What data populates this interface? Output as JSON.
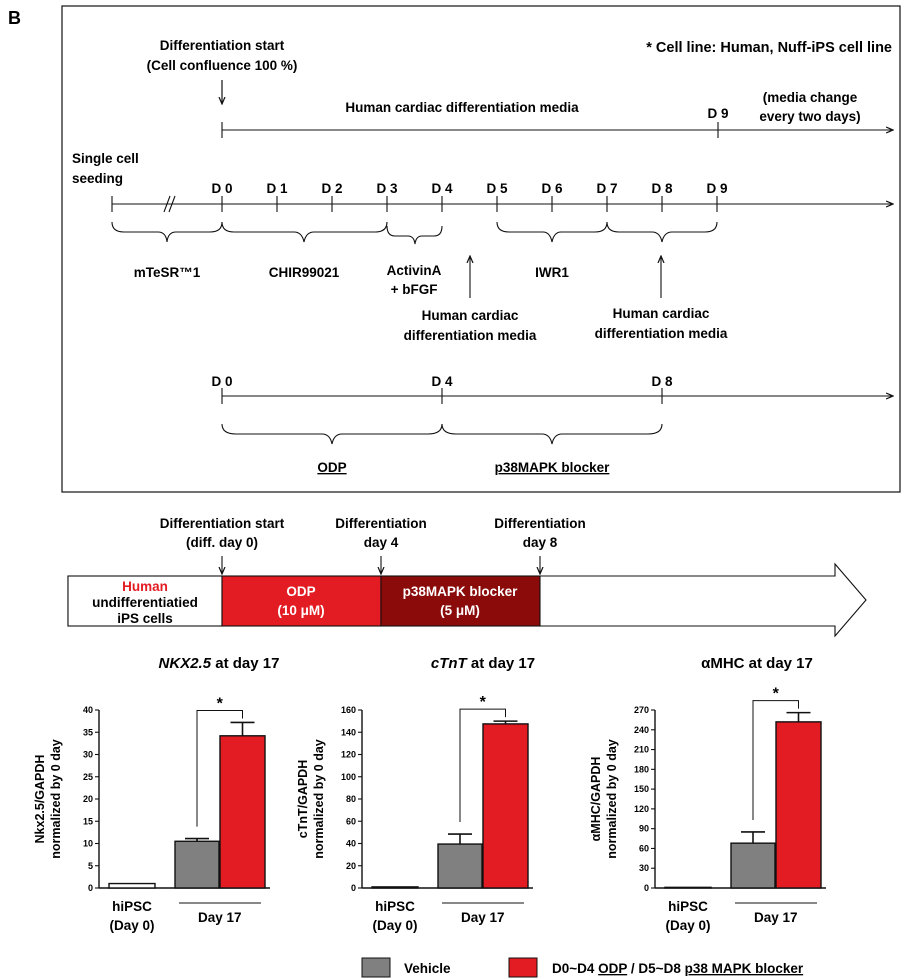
{
  "panel_label": "B",
  "timeline": {
    "start_label": [
      "Differentiation start",
      "(Cell confluence 100 %)"
    ],
    "cell_line_note": "* Cell line: Human, Nuff-iPS cell line",
    "media_label": "Human cardiac differentiation media",
    "media_end_day": "D 9",
    "media_change_note": [
      "(media change",
      "every two days)"
    ],
    "seeding_label": [
      "Single cell",
      "seeding"
    ],
    "days": [
      "D 0",
      "D 1",
      "D 2",
      "D 3",
      "D 4",
      "D 5",
      "D 6",
      "D 7",
      "D 8",
      "D 9"
    ],
    "stages": {
      "mtesr": "mTeSR™1",
      "chir": "CHIR99021",
      "activin": [
        "ActivinA",
        "+ bFGF"
      ],
      "iwr1": "IWR1",
      "media1": [
        "Human cardiac",
        "differentiation media"
      ],
      "media2": [
        "Human cardiac",
        "differentiation media"
      ]
    },
    "treatment_days": [
      "D 0",
      "D 4",
      "D 8"
    ],
    "treatments": {
      "odp": "ODP",
      "p38": "p38MAPK blocker"
    }
  },
  "schematic": {
    "markers": [
      [
        "Differentiation start",
        "(diff. day 0)"
      ],
      [
        "Differentiation",
        "day 4"
      ],
      [
        "Differentiation",
        "day 8"
      ]
    ],
    "box1": {
      "highlight": "Human",
      "lines": [
        "undifferentiatied",
        "iPS cells"
      ]
    },
    "box2": [
      "ODP",
      "(10 μM)"
    ],
    "box3": [
      "p38MAPK blocker",
      "(5 μM)"
    ],
    "colors": {
      "red": "#e31b23",
      "dark_red": "#8b0a0a",
      "gray": "#808080"
    }
  },
  "chart_data": [
    {
      "type": "bar",
      "title_italic": "NKX2.5",
      "title_rest": " at day 17",
      "ylabel": [
        "Nkx2.5/GAPDH",
        "normalized by 0 day"
      ],
      "categories": [
        "hiPSC (Day 0)",
        "Vehicle (Day 17)",
        "ODP/p38 MAPK blocker (Day 17)"
      ],
      "values": [
        1,
        10.5,
        34.2
      ],
      "errors": [
        0,
        0.6,
        3.0
      ],
      "ylim": [
        0,
        40
      ],
      "yticks": [
        "0",
        "5",
        "10",
        "15",
        "20",
        "25",
        "30",
        "35",
        "40"
      ],
      "significance": "*"
    },
    {
      "type": "bar",
      "title_italic": "cTnT",
      "title_rest": " at day 17",
      "ylabel": [
        "cTnT/GAPDH",
        "normalized by 0 day"
      ],
      "categories": [
        "hiPSC (Day 0)",
        "Vehicle (Day 17)",
        "ODP/p38 MAPK blocker (Day 17)"
      ],
      "values": [
        1,
        39.5,
        147.5
      ],
      "errors": [
        0,
        9.0,
        2.5
      ],
      "ylim": [
        0,
        160
      ],
      "yticks": [
        "0",
        "20",
        "40",
        "60",
        "80",
        "100",
        "120",
        "140",
        "160"
      ],
      "significance": "*"
    },
    {
      "type": "bar",
      "title_italic": "",
      "title_rest": "αMHC at day 17",
      "ylabel": [
        "αMHC/GAPDH",
        "normalized by 0 day"
      ],
      "categories": [
        "hiPSC (Day 0)",
        "Vehicle (Day 17)",
        "ODP/p38 MAPK blocker (Day 17)"
      ],
      "values": [
        1,
        68,
        252
      ],
      "errors": [
        0,
        17,
        14
      ],
      "ylim": [
        0,
        270
      ],
      "yticks": [
        "0",
        "30",
        "60",
        "90",
        "120",
        "150",
        "180",
        "210",
        "240",
        "270"
      ],
      "significance": "*"
    }
  ],
  "xlabels": {
    "hipsc": [
      "hiPSC",
      "(Day 0)"
    ],
    "day17": "Day 17"
  },
  "legend": {
    "vehicle": "Vehicle",
    "treat_prefix": "D0~D4 ",
    "treat_odp": "ODP",
    "treat_mid": " / D5~D8 ",
    "treat_p38": "p38 MAPK blocker"
  }
}
